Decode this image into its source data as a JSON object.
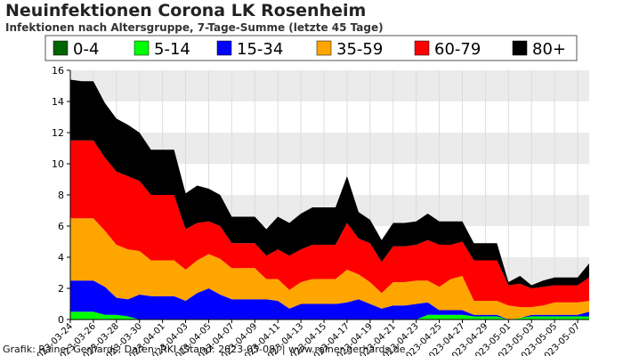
{
  "header": {
    "title": "Neuinfektionen Corona LK Rosenheim",
    "subtitle": "Infektionen nach Altersgruppe, 7-Tage-Summe (letzte 45 Tage)"
  },
  "footer": {
    "credit": "Grafik: Rainer Gerhards, Daten: RKI (Stand: 2023-05-08) | www.rainer-gerhards.de"
  },
  "chart_data": {
    "type": "area",
    "stacked": true,
    "title": "Neuinfektionen Corona LK Rosenheim",
    "subtitle": "Infektionen nach Altersgruppe, 7-Tage-Summe (letzte 45 Tage)",
    "xlabel": "",
    "ylabel": "",
    "ylim": [
      0,
      16
    ],
    "yticks": [
      0,
      2,
      4,
      6,
      8,
      10,
      12,
      14,
      16
    ],
    "grid": true,
    "legend_position": "top",
    "x": [
      "2023-03-24",
      "2023-03-25",
      "2023-03-26",
      "2023-03-27",
      "2023-03-28",
      "2023-03-29",
      "2023-03-30",
      "2023-03-31",
      "2023-04-01",
      "2023-04-02",
      "2023-04-03",
      "2023-04-04",
      "2023-04-05",
      "2023-04-06",
      "2023-04-07",
      "2023-04-08",
      "2023-04-09",
      "2023-04-10",
      "2023-04-11",
      "2023-04-12",
      "2023-04-13",
      "2023-04-14",
      "2023-04-15",
      "2023-04-16",
      "2023-04-17",
      "2023-04-18",
      "2023-04-19",
      "2023-04-20",
      "2023-04-21",
      "2023-04-22",
      "2023-04-23",
      "2023-04-24",
      "2023-04-25",
      "2023-04-26",
      "2023-04-27",
      "2023-04-28",
      "2023-04-29",
      "2023-04-30",
      "2023-05-01",
      "2023-05-02",
      "2023-05-03",
      "2023-05-04",
      "2023-05-05",
      "2023-05-06",
      "2023-05-07",
      "2023-05-08"
    ],
    "tick_labels": [
      "2023-03-24",
      "2023-03-26",
      "2023-03-28",
      "2023-03-30",
      "2023-04-01",
      "2023-04-03",
      "2023-04-05",
      "2023-04-07",
      "2023-04-09",
      "2023-04-11",
      "2023-04-13",
      "2023-04-15",
      "2023-04-17",
      "2023-04-19",
      "2023-04-21",
      "2023-04-23",
      "2023-04-25",
      "2023-04-27",
      "2023-04-29",
      "2023-05-01",
      "2023-05-03",
      "2023-05-05",
      "2023-05-07"
    ],
    "series": [
      {
        "name": "0-4",
        "color": "#006400",
        "values": [
          0,
          0,
          0,
          0,
          0,
          0,
          0,
          0,
          0,
          0,
          0,
          0,
          0,
          0,
          0,
          0,
          0,
          0,
          0,
          0,
          0,
          0,
          0,
          0,
          0,
          0,
          0,
          0,
          0,
          0,
          0,
          0,
          0,
          0,
          0,
          0,
          0,
          0,
          0,
          0,
          0,
          0,
          0,
          0,
          0,
          0
        ]
      },
      {
        "name": "5-14",
        "color": "#00ff00",
        "values": [
          0.5,
          0.5,
          0.5,
          0.3,
          0.3,
          0.2,
          0,
          0,
          0,
          0,
          0,
          0,
          0,
          0,
          0,
          0,
          0,
          0,
          0,
          0,
          0,
          0,
          0,
          0,
          0,
          0,
          0,
          0,
          0,
          0,
          0,
          0.3,
          0.3,
          0.3,
          0.3,
          0.2,
          0.2,
          0.2,
          0,
          0.1,
          0.2,
          0.2,
          0.2,
          0.2,
          0.2,
          0.2
        ]
      },
      {
        "name": "15-34",
        "color": "#0000ff",
        "values": [
          2,
          2,
          2,
          1.8,
          1.1,
          1.1,
          1.6,
          1.5,
          1.5,
          1.5,
          1.2,
          1.7,
          2,
          1.6,
          1.3,
          1.3,
          1.3,
          1.3,
          1.2,
          0.7,
          1,
          1,
          1,
          1,
          1.1,
          1.3,
          1,
          0.7,
          0.9,
          0.9,
          1,
          0.8,
          0.3,
          0.3,
          0.3,
          0.1,
          0.1,
          0.1,
          0,
          0,
          0.1,
          0.1,
          0.1,
          0.1,
          0.1,
          0.3
        ]
      },
      {
        "name": "35-59",
        "color": "#ffa500",
        "values": [
          4,
          4,
          4,
          3.6,
          3.4,
          3.2,
          2.8,
          2.3,
          2.3,
          2.3,
          2,
          2.1,
          2.2,
          2.3,
          2,
          2,
          2,
          1.3,
          1.4,
          1.2,
          1.4,
          1.6,
          1.6,
          1.6,
          2.1,
          1.6,
          1.4,
          1,
          1.5,
          1.5,
          1.5,
          1.4,
          1.5,
          2,
          2.2,
          0.9,
          0.9,
          0.9,
          0.9,
          0.7,
          0.5,
          0.6,
          0.8,
          0.8,
          0.8,
          0.7
        ]
      },
      {
        "name": "60-79",
        "color": "#ff0000",
        "values": [
          5,
          5,
          5,
          4.7,
          4.7,
          4.7,
          4.5,
          4.2,
          4.2,
          4.2,
          2.6,
          2.4,
          2.1,
          2.1,
          1.6,
          1.6,
          1.6,
          1.5,
          1.9,
          2.2,
          2.1,
          2.2,
          2.2,
          2.2,
          3,
          2.3,
          2.5,
          2,
          2.3,
          2.3,
          2.3,
          2.6,
          2.7,
          2.2,
          2.2,
          2.6,
          2.6,
          2.6,
          1.3,
          1.5,
          1.2,
          1.2,
          1.1,
          1.1,
          1.1,
          1.5
        ]
      },
      {
        "name": "80+",
        "color": "#000000",
        "values": [
          3.9,
          3.8,
          3.8,
          3.5,
          3.4,
          3.3,
          3.1,
          2.9,
          2.9,
          2.9,
          2.3,
          2.4,
          2.1,
          2,
          1.7,
          1.7,
          1.7,
          1.7,
          2.1,
          2.1,
          2.3,
          2.4,
          2.4,
          2.4,
          3,
          1.7,
          1.5,
          1.4,
          1.5,
          1.5,
          1.5,
          1.7,
          1.5,
          1.5,
          1.3,
          1.1,
          1.1,
          1.1,
          0.2,
          0.5,
          0.2,
          0.4,
          0.5,
          0.5,
          0.5,
          0.9
        ]
      }
    ]
  }
}
